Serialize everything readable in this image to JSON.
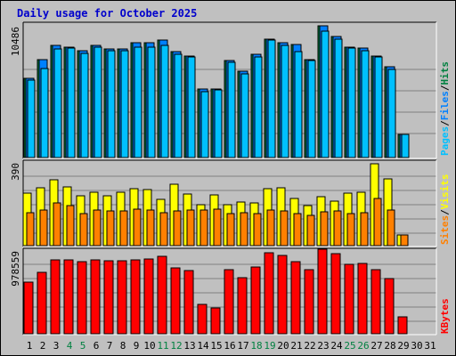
{
  "title": "Daily usage for October 2025",
  "colors": {
    "hits": "#008040",
    "files": "#0080ff",
    "pages": "#00c0ff",
    "visits": "#ffff00",
    "sites": "#ff8000",
    "kbytes": "#ff0000",
    "weekend_day": "#008040",
    "weekday": "#000000"
  },
  "chart_data": [
    {
      "type": "bar",
      "panel": "hits-files-pages",
      "max_label": "10486",
      "ymax": 10486,
      "legend": [
        "Pages",
        "/",
        "Files",
        "/",
        "Hits"
      ],
      "x": [
        1,
        2,
        3,
        4,
        5,
        6,
        7,
        8,
        9,
        10,
        11,
        12,
        13,
        14,
        15,
        16,
        17,
        18,
        19,
        20,
        21,
        22,
        23,
        24,
        25,
        26,
        27,
        28,
        29,
        30,
        31
      ],
      "series": [
        {
          "name": "Hits",
          "values": [
            6200,
            7700,
            8800,
            8700,
            8400,
            8800,
            8500,
            8500,
            9000,
            9000,
            9200,
            8300,
            8000,
            5400,
            5400,
            7600,
            6800,
            8100,
            9300,
            9000,
            8900,
            7700,
            10350,
            9500,
            8700,
            8600,
            8000,
            7100,
            1850,
            0,
            0
          ]
        },
        {
          "name": "Files",
          "values": [
            6200,
            7700,
            8800,
            8700,
            8400,
            8800,
            8500,
            8500,
            9000,
            9000,
            9200,
            8300,
            8000,
            5400,
            5400,
            7600,
            6800,
            8100,
            9300,
            9000,
            8900,
            7700,
            10350,
            9500,
            8700,
            8600,
            8000,
            7100,
            1850,
            0,
            0
          ]
        },
        {
          "name": "Pages",
          "values": [
            6100,
            7000,
            8500,
            8600,
            8200,
            8700,
            8400,
            8400,
            8700,
            8700,
            8800,
            8100,
            7900,
            5200,
            5300,
            7500,
            6600,
            7900,
            9200,
            8800,
            8300,
            7600,
            9900,
            9300,
            8600,
            8400,
            7900,
            6900,
            1800,
            0,
            0
          ]
        }
      ]
    },
    {
      "type": "bar",
      "panel": "visits-sites",
      "max_label": "390",
      "ymax": 390,
      "legend": [
        "Sites",
        "/",
        "Visits"
      ],
      "x": [
        1,
        2,
        3,
        4,
        5,
        6,
        7,
        8,
        9,
        10,
        11,
        12,
        13,
        14,
        15,
        16,
        17,
        18,
        19,
        20,
        21,
        22,
        23,
        24,
        25,
        26,
        27,
        28,
        29,
        30,
        31
      ],
      "series": [
        {
          "name": "Visits",
          "values": [
            245,
            270,
            305,
            272,
            232,
            247,
            232,
            250,
            265,
            262,
            215,
            285,
            240,
            190,
            235,
            190,
            205,
            198,
            265,
            268,
            218,
            185,
            228,
            208,
            243,
            250,
            380,
            310,
            50,
            0,
            0
          ]
        },
        {
          "name": "Sites",
          "values": [
            155,
            168,
            200,
            185,
            150,
            168,
            162,
            162,
            172,
            168,
            155,
            162,
            168,
            165,
            172,
            148,
            152,
            150,
            168,
            162,
            150,
            140,
            158,
            160,
            150,
            152,
            218,
            165,
            50,
            0,
            0
          ]
        }
      ]
    },
    {
      "type": "bar",
      "panel": "kbytes",
      "max_label": "978559",
      "ymax": 978559,
      "legend": [
        "KBytes"
      ],
      "x": [
        1,
        2,
        3,
        4,
        5,
        6,
        7,
        8,
        9,
        10,
        11,
        12,
        13,
        14,
        15,
        16,
        17,
        18,
        19,
        20,
        21,
        22,
        23,
        24,
        25,
        26,
        27,
        28,
        29,
        30,
        31
      ],
      "series": [
        {
          "name": "KBytes",
          "values": [
            610000,
            725000,
            870000,
            875000,
            855000,
            875000,
            860000,
            860000,
            870000,
            880000,
            915000,
            780000,
            750000,
            345000,
            305000,
            755000,
            660000,
            790000,
            960000,
            925000,
            855000,
            755000,
            1000000,
            945000,
            825000,
            830000,
            755000,
            655000,
            200000,
            0,
            0
          ]
        }
      ]
    }
  ],
  "x_labels": [
    {
      "label": "1",
      "weekend": false
    },
    {
      "label": "2",
      "weekend": false
    },
    {
      "label": "3",
      "weekend": false
    },
    {
      "label": "4",
      "weekend": true
    },
    {
      "label": "5",
      "weekend": true
    },
    {
      "label": "6",
      "weekend": false
    },
    {
      "label": "7",
      "weekend": false
    },
    {
      "label": "8",
      "weekend": false
    },
    {
      "label": "9",
      "weekend": false
    },
    {
      "label": "10",
      "weekend": false
    },
    {
      "label": "11",
      "weekend": true
    },
    {
      "label": "12",
      "weekend": true
    },
    {
      "label": "13",
      "weekend": false
    },
    {
      "label": "14",
      "weekend": false
    },
    {
      "label": "15",
      "weekend": false
    },
    {
      "label": "16",
      "weekend": false
    },
    {
      "label": "17",
      "weekend": false
    },
    {
      "label": "18",
      "weekend": true
    },
    {
      "label": "19",
      "weekend": true
    },
    {
      "label": "20",
      "weekend": false
    },
    {
      "label": "21",
      "weekend": false
    },
    {
      "label": "22",
      "weekend": false
    },
    {
      "label": "23",
      "weekend": false
    },
    {
      "label": "24",
      "weekend": false
    },
    {
      "label": "25",
      "weekend": true
    },
    {
      "label": "26",
      "weekend": true
    },
    {
      "label": "27",
      "weekend": false
    },
    {
      "label": "28",
      "weekend": false
    },
    {
      "label": "29",
      "weekend": false
    },
    {
      "label": "30",
      "weekend": false
    },
    {
      "label": "31",
      "weekend": false
    }
  ]
}
